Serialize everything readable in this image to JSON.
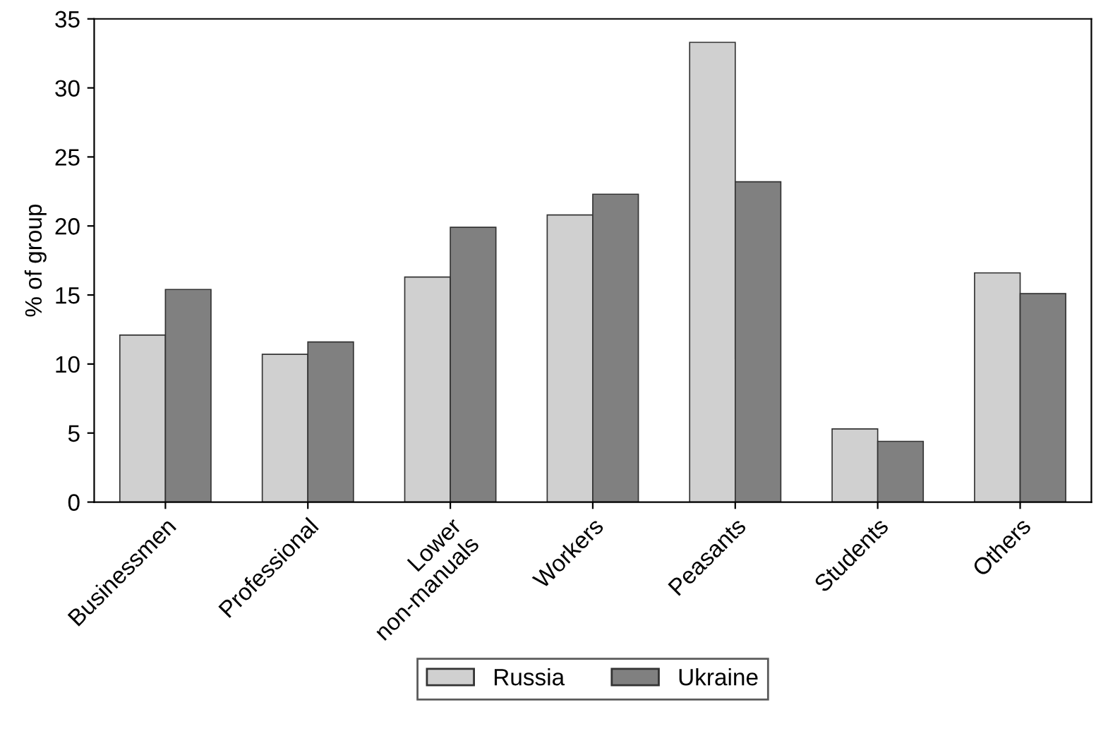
{
  "chart_data": {
    "type": "bar",
    "ylabel": "% of group",
    "categories": [
      "Businessmen",
      "Professional",
      "Lower\nnon-manuals",
      "Workers",
      "Peasants",
      "Students",
      "Others"
    ],
    "series": [
      {
        "name": "Russia",
        "color": "#d0d0d0",
        "values": [
          12.1,
          10.7,
          16.3,
          20.8,
          33.3,
          5.3,
          16.6
        ]
      },
      {
        "name": "Ukraine",
        "color": "#808080",
        "values": [
          15.4,
          11.6,
          19.9,
          22.3,
          23.2,
          4.4,
          15.1
        ]
      }
    ],
    "ylim": [
      0,
      35
    ],
    "yticks": [
      0,
      5,
      10,
      15,
      20,
      25,
      30,
      35
    ],
    "grid": false,
    "legend": "bottom"
  }
}
